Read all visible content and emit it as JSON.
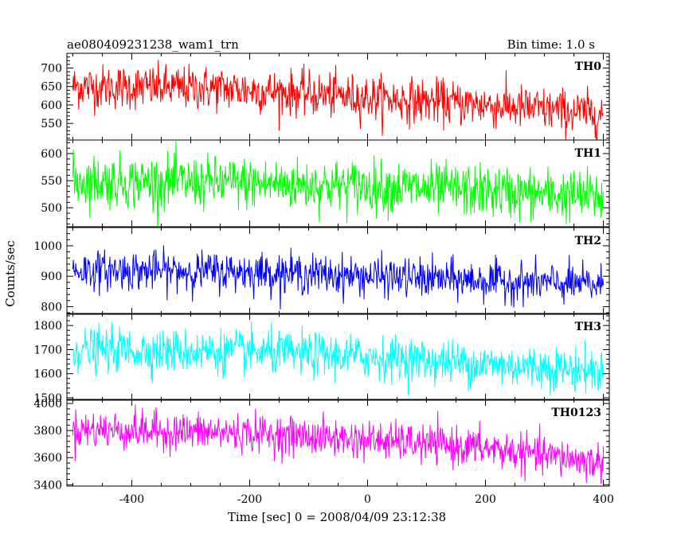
{
  "header": {
    "title": "ae080409231238_wam1_trn",
    "bin_time": "Bin time: 1.0 s"
  },
  "chart_data": {
    "type": "line",
    "xlabel": "Time [sec] 0 = 2008/04/09 23:12:38",
    "ylabel": "Counts/sec",
    "xlim": [
      -510,
      410
    ],
    "x_range_data": [
      -500,
      400
    ],
    "x_ticks": [
      -400,
      -200,
      0,
      200,
      400
    ],
    "series": [
      {
        "name": "TH0",
        "color": "#ff0000",
        "ylim": [
          505,
          740
        ],
        "yticks": [
          550,
          600,
          650,
          700
        ],
        "trend": [
          [
            -500,
            650
          ],
          [
            -250,
            645
          ],
          [
            0,
            620
          ],
          [
            200,
            600
          ],
          [
            400,
            575
          ]
        ],
        "noise_sd": 30
      },
      {
        "name": "TH1",
        "color": "#00ff00",
        "ylim": [
          465,
          625
        ],
        "yticks": [
          500,
          550,
          600
        ],
        "trend": [
          [
            -500,
            550
          ],
          [
            -200,
            545
          ],
          [
            0,
            540
          ],
          [
            200,
            530
          ],
          [
            400,
            520
          ]
        ],
        "noise_sd": 24
      },
      {
        "name": "TH2",
        "color": "#0000ff",
        "ylim": [
          775,
          1060
        ],
        "yticks": [
          800,
          900,
          1000
        ],
        "trend": [
          [
            -500,
            920
          ],
          [
            -200,
            915
          ],
          [
            0,
            900
          ],
          [
            200,
            885
          ],
          [
            400,
            870
          ]
        ],
        "noise_sd": 32
      },
      {
        "name": "TH3",
        "color": "#00ffff",
        "ylim": [
          1490,
          1850
        ],
        "yticks": [
          1500,
          1600,
          1700,
          1800
        ],
        "trend": [
          [
            -500,
            1700
          ],
          [
            -200,
            1690
          ],
          [
            0,
            1670
          ],
          [
            200,
            1640
          ],
          [
            400,
            1610
          ]
        ],
        "noise_sd": 45
      },
      {
        "name": "TH0123",
        "color": "#ff00ff",
        "ylim": [
          3390,
          4030
        ],
        "yticks": [
          3400,
          3600,
          3800,
          4000
        ],
        "trend": [
          [
            -500,
            3810
          ],
          [
            -200,
            3780
          ],
          [
            0,
            3730
          ],
          [
            200,
            3670
          ],
          [
            400,
            3560
          ]
        ],
        "noise_sd": 70
      }
    ]
  }
}
